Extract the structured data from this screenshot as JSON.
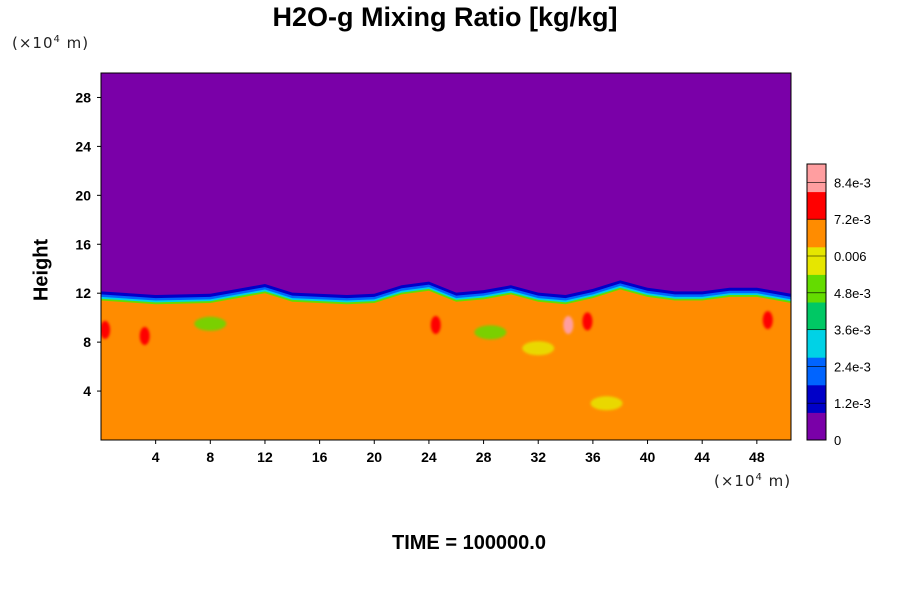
{
  "chart_data": {
    "type": "heatmap",
    "title": "H2O-g Mixing Ratio [kg/kg]",
    "ylabel": "Height",
    "xlabel": "",
    "x_unit_label": {
      "prefix": "(×10",
      "exp": "4",
      "suffix": " m)"
    },
    "y_unit_label": {
      "prefix": "(×10",
      "exp": "4",
      "suffix": " m)"
    },
    "x_ticks": [
      4,
      8,
      12,
      16,
      20,
      24,
      28,
      32,
      36,
      40,
      44,
      48
    ],
    "y_ticks": [
      4,
      8,
      12,
      16,
      20,
      24,
      28
    ],
    "xlim": [
      0,
      50.5
    ],
    "ylim": [
      0,
      30
    ],
    "fields": {
      "upper_value": 0,
      "lower_value": 0.0065,
      "interface_height": [
        [
          0,
          11.4
        ],
        [
          4,
          11.1
        ],
        [
          8,
          11.2
        ],
        [
          10,
          11.6
        ],
        [
          12,
          12.0
        ],
        [
          14,
          11.3
        ],
        [
          18,
          11.1
        ],
        [
          20,
          11.2
        ],
        [
          22,
          11.9
        ],
        [
          24,
          12.2
        ],
        [
          26,
          11.3
        ],
        [
          28,
          11.5
        ],
        [
          30,
          11.9
        ],
        [
          32,
          11.3
        ],
        [
          34,
          11.1
        ],
        [
          36,
          11.6
        ],
        [
          38,
          12.3
        ],
        [
          40,
          11.7
        ],
        [
          42,
          11.4
        ],
        [
          44,
          11.4
        ],
        [
          46,
          11.7
        ],
        [
          48,
          11.7
        ],
        [
          50.5,
          11.2
        ]
      ],
      "moist_patches": [
        {
          "x": 0.3,
          "y": 9.0,
          "value": 0.0075
        },
        {
          "x": 3.2,
          "y": 8.5,
          "value": 0.0075
        },
        {
          "x": 24.5,
          "y": 9.4,
          "value": 0.0078
        },
        {
          "x": 34.2,
          "y": 9.4,
          "value": 0.0085
        },
        {
          "x": 35.6,
          "y": 9.7,
          "value": 0.0078
        },
        {
          "x": 48.8,
          "y": 9.8,
          "value": 0.0075
        }
      ],
      "dry_patches": [
        {
          "x": 8.0,
          "y": 9.5,
          "value": 0.0052
        },
        {
          "x": 28.5,
          "y": 8.8,
          "value": 0.005
        },
        {
          "x": 32.0,
          "y": 7.5,
          "value": 0.0058
        },
        {
          "x": 37.0,
          "y": 3.0,
          "value": 0.0062
        }
      ]
    },
    "colorbar": {
      "vmin": 0,
      "vmax": 0.009,
      "tick_values": [
        0,
        0.0012,
        0.0024,
        0.0036,
        0.0048,
        0.006,
        0.0072,
        0.0084
      ],
      "tick_labels": [
        "0",
        "1.2e-3",
        "2.4e-3",
        "3.6e-3",
        "4.8e-3",
        "0.006",
        "7.2e-3",
        "8.4e-3"
      ],
      "colors": [
        "#7a00a8",
        "#0000c8",
        "#0064ff",
        "#00d2e6",
        "#00c864",
        "#64dc00",
        "#e6e600",
        "#ff8c00",
        "#ff0000",
        "#ff9ea0"
      ]
    },
    "legend": "right",
    "grid": false
  },
  "footer": {
    "time_label": "TIME = 100000.0"
  }
}
